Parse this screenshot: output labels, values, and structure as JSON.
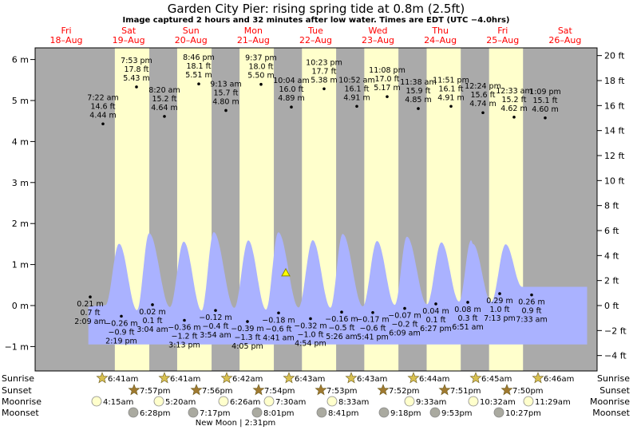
{
  "header": {
    "title": "Garden City Pier: rising  spring tide at 0.8m (2.5ft)",
    "subtitle": "Image captured 2 hours and 32 minutes after low water. Times are EDT (UTC −4.0hrs)"
  },
  "chart_data": {
    "type": "area",
    "title": "Garden City Pier: rising  spring tide at 0.8m (2.5ft)",
    "ylabel_left": "m",
    "ylabel_right": "ft",
    "ylim_m": [
      -1.5,
      6.4
    ],
    "y_ticks_m": [
      "6 m",
      "5 m",
      "4 m",
      "3 m",
      "2 m",
      "1 m",
      "0 m",
      "−1 m"
    ],
    "y_ticks_ft": [
      "20 ft",
      "18 ft",
      "16 ft",
      "14 ft",
      "12 ft",
      "10 ft",
      "8 ft",
      "6 ft",
      "4 ft",
      "2 ft",
      "0 ft",
      "−2 ft",
      "−4 ft"
    ],
    "grid": false,
    "colors": {
      "day": "#ffffcc",
      "night": "#aaaaaa",
      "water": "#aab2ff",
      "date": "#ff0000"
    },
    "days": [
      {
        "dow": "Fri",
        "date": "18–Aug"
      },
      {
        "dow": "Sat",
        "date": "19–Aug"
      },
      {
        "dow": "Sun",
        "date": "20–Aug"
      },
      {
        "dow": "Mon",
        "date": "21–Aug"
      },
      {
        "dow": "Tue",
        "date": "22–Aug"
      },
      {
        "dow": "Wed",
        "date": "23–Aug"
      },
      {
        "dow": "Thu",
        "date": "24–Aug"
      },
      {
        "dow": "Fri",
        "date": "25–Aug"
      },
      {
        "dow": "Sat",
        "date": "26–Aug"
      }
    ],
    "daylight": [
      {
        "start": "Aug 19 6:41am",
        "end": "Aug 19 7:57pm"
      },
      {
        "start": "Aug 20 6:41am",
        "end": "Aug 20 7:56pm"
      },
      {
        "start": "Aug 21 6:42am",
        "end": "Aug 21 7:54pm"
      },
      {
        "start": "Aug 22 6:43am",
        "end": "Aug 22 7:53pm"
      },
      {
        "start": "Aug 23 6:43am",
        "end": "Aug 23 7:52pm"
      },
      {
        "start": "Aug 24 6:44am",
        "end": "Aug 24 7:51pm"
      },
      {
        "start": "Aug 25 6:45am",
        "end": "Aug 25 7:50pm"
      }
    ],
    "current": {
      "label": "rising spring tide at 0.8m (2.5ft)",
      "height_m": 0.8,
      "time": "Aug 22 4:41am + 2h32m"
    },
    "highs": [
      {
        "time": "7:22 am",
        "ft": "14.6 ft",
        "m": "4.44 m",
        "h": 4.44
      },
      {
        "time": "7:53 pm",
        "ft": "17.8 ft",
        "m": "5.43 m",
        "h": 5.43
      },
      {
        "time": "8:20 am",
        "ft": "15.2 ft",
        "m": "4.64 m",
        "h": 4.64
      },
      {
        "time": "8:46 pm",
        "ft": "18.1 ft",
        "m": "5.51 m",
        "h": 5.51
      },
      {
        "time": "9:13 am",
        "ft": "15.7 ft",
        "m": "4.80 m",
        "h": 4.8
      },
      {
        "time": "9:37 pm",
        "ft": "18.0 ft",
        "m": "5.50 m",
        "h": 5.5
      },
      {
        "time": "10:04 am",
        "ft": "16.0 ft",
        "m": "4.89 m",
        "h": 4.89
      },
      {
        "time": "10:23 pm",
        "ft": "17.7 ft",
        "m": "5.38 m",
        "h": 5.38
      },
      {
        "time": "10:52 am",
        "ft": "16.1 ft",
        "m": "4.91 m",
        "h": 4.91
      },
      {
        "time": "11:08 pm",
        "ft": "17.0 ft",
        "m": "5.17 m",
        "h": 5.17
      },
      {
        "time": "11:38 am",
        "ft": "15.9 ft",
        "m": "4.85 m",
        "h": 4.85
      },
      {
        "time": "11:51 pm",
        "ft": "16.1 ft",
        "m": "4.91 m",
        "h": 4.91
      },
      {
        "time": "12:24 pm",
        "ft": "15.6 ft",
        "m": "4.74 m",
        "h": 4.74
      },
      {
        "time": "12:33 am",
        "ft": "15.2 ft",
        "m": "4.62 m",
        "h": 4.62
      },
      {
        "time": "1:09 pm",
        "ft": "15.1 ft",
        "m": "4.60 m",
        "h": 4.6
      }
    ],
    "lows": [
      {
        "m": "0.21 m",
        "ft": "0.7 ft",
        "time": "2:09 am",
        "h": 0.21
      },
      {
        "m": "−0.26 m",
        "ft": "−0.9 ft",
        "time": "2:19 pm",
        "h": -0.26
      },
      {
        "m": "0.02 m",
        "ft": "0.1 ft",
        "time": "3:04 am",
        "h": 0.02
      },
      {
        "m": "−0.36 m",
        "ft": "−1.2 ft",
        "time": "3:13 pm",
        "h": -0.36
      },
      {
        "m": "−0.12 m",
        "ft": "−0.4 ft",
        "time": "3:54 am",
        "h": -0.12
      },
      {
        "m": "−0.39 m",
        "ft": "−1.3 ft",
        "time": "4:05 pm",
        "h": -0.39
      },
      {
        "m": "−0.18 m",
        "ft": "−0.6 ft",
        "time": "4:41 am",
        "h": -0.18
      },
      {
        "m": "−0.32 m",
        "ft": "−1.0 ft",
        "time": "4:54 pm",
        "h": -0.32
      },
      {
        "m": "−0.16 m",
        "ft": "−0.5 ft",
        "time": "5:26 am",
        "h": -0.16
      },
      {
        "m": "−0.17 m",
        "ft": "−0.6 ft",
        "time": "5:41 pm",
        "h": -0.17
      },
      {
        "m": "−0.07 m",
        "ft": "−0.2 ft",
        "time": "6:09 am",
        "h": -0.07
      },
      {
        "m": "0.04 m",
        "ft": "0.1 ft",
        "time": "6:27 pm",
        "h": 0.04
      },
      {
        "m": "0.08 m",
        "ft": "0.3 ft",
        "time": "6:51 am",
        "h": 0.08
      },
      {
        "m": "0.29 m",
        "ft": "1.0 ft",
        "time": "7:13 pm",
        "h": 0.29
      },
      {
        "m": "0.26 m",
        "ft": "0.9 ft",
        "time": "7:33 am",
        "h": 0.26
      }
    ]
  },
  "almanac": {
    "row_labels": [
      "Sunrise",
      "Sunset",
      "Moonrise",
      "Moonset"
    ],
    "sunrise": [
      "6:41am",
      "6:41am",
      "6:42am",
      "6:43am",
      "6:43am",
      "6:44am",
      "6:45am",
      "6:46am"
    ],
    "sunset": [
      "7:57pm",
      "7:56pm",
      "7:54pm",
      "7:53pm",
      "7:52pm",
      "7:51pm",
      "7:50pm"
    ],
    "moonrise": [
      "4:15am",
      "5:20am",
      "6:26am",
      "7:30am",
      "8:33am",
      "9:33am",
      "10:32am",
      "11:29am"
    ],
    "moonset": [
      "6:28pm",
      "7:17pm",
      "8:01pm",
      "8:41pm",
      "9:18pm",
      "9:53pm",
      "10:27pm"
    ],
    "phase": "New Moon | 2:31pm"
  }
}
